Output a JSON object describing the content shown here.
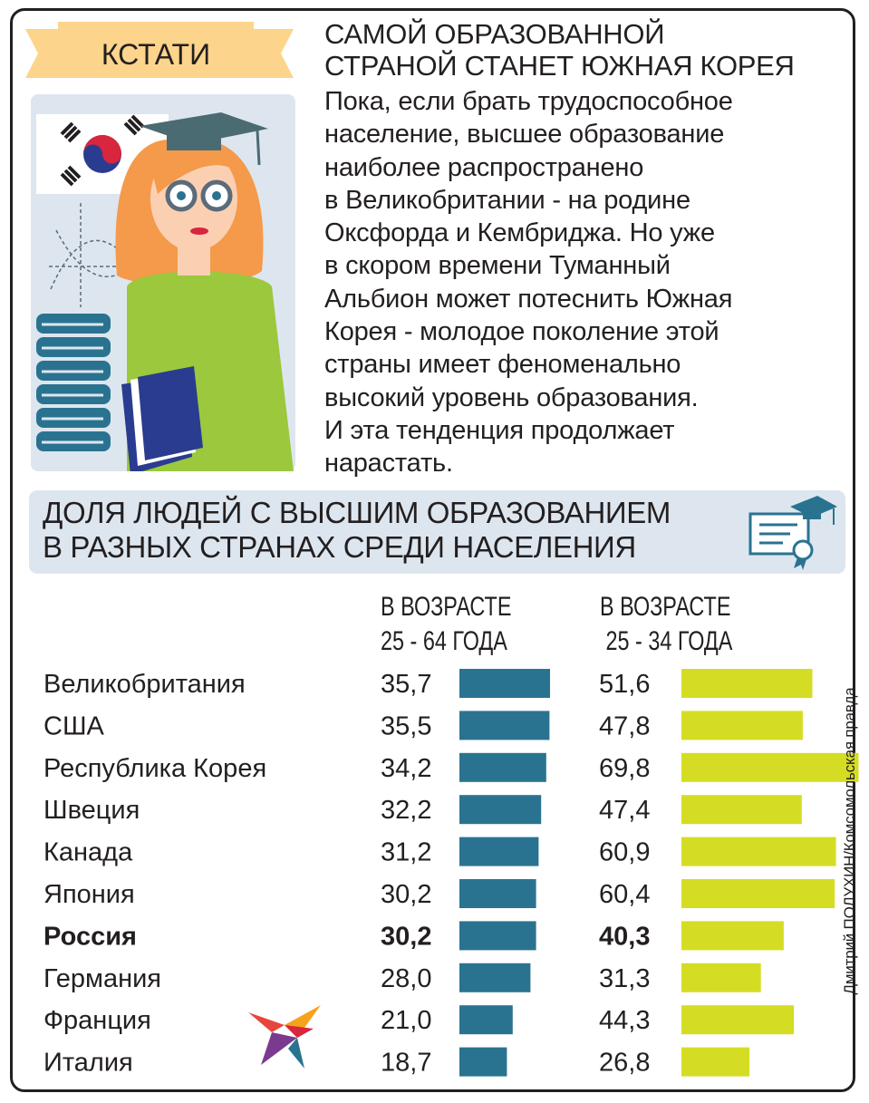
{
  "badge": "КСТАТИ",
  "headline": [
    "САМОЙ ОБРАЗОВАННОЙ",
    "СТРАНОЙ СТАНЕТ ЮЖНАЯ КОРЕЯ"
  ],
  "body_lines": [
    "Пока, если брать трудоспособное",
    "население, высшее образование",
    "наиболее распространено",
    "в Великобритании - на родине",
    "Оксфорда и Кембриджа. Но уже",
    "в скором времени Туманный",
    "Альбион может потеснить Южная",
    "Корея - молодое поколение этой",
    "страны имеет феноменально",
    "высокий уровень образования.",
    "И эта тенденция продолжает",
    "нарастать."
  ],
  "colors": {
    "teal": "#2a7390",
    "lime": "#d4dd23",
    "banner": "#dde6ef",
    "ribbon": "#fcd48b"
  },
  "chart_data": {
    "type": "bar",
    "orientation": "horizontal",
    "title": [
      "ДОЛЯ ЛЮДЕЙ С ВЫСШИМ ОБРАЗОВАНИЕМ",
      "В РАЗНЫХ СТРАНАХ СРЕДИ НАСЕЛЕНИЯ"
    ],
    "categories": [
      "Великобритания",
      "США",
      "Республика Корея",
      "Швеция",
      "Канада",
      "Япония",
      "Россия",
      "Германия",
      "Франция",
      "Италия"
    ],
    "highlight": "Россия",
    "series": [
      {
        "name": [
          "В ВОЗРАСТЕ",
          "25 - 64 ГОДА"
        ],
        "color": "#2a7390",
        "values": [
          35.7,
          35.5,
          34.2,
          32.2,
          31.2,
          30.2,
          30.2,
          28.0,
          21.0,
          18.7
        ],
        "labels": [
          "35,7",
          "35,5",
          "34,2",
          "32,2",
          "31,2",
          "30,2",
          "30,2",
          "28,0",
          "21,0",
          "18,7"
        ]
      },
      {
        "name": [
          "В ВОЗРАСТЕ",
          " 25 - 34 ГОДА"
        ],
        "color": "#d4dd23",
        "values": [
          51.6,
          47.8,
          69.8,
          47.4,
          60.9,
          60.4,
          40.3,
          31.3,
          44.3,
          26.8
        ],
        "labels": [
          "51,6",
          "47,8",
          "69,8",
          "47,4",
          "60,9",
          "60,4",
          "40,3",
          "31,3",
          "44,3",
          "26,8"
        ]
      }
    ]
  },
  "credit": "Дмитрий ПОЛУХИН/Комсомольская правда"
}
